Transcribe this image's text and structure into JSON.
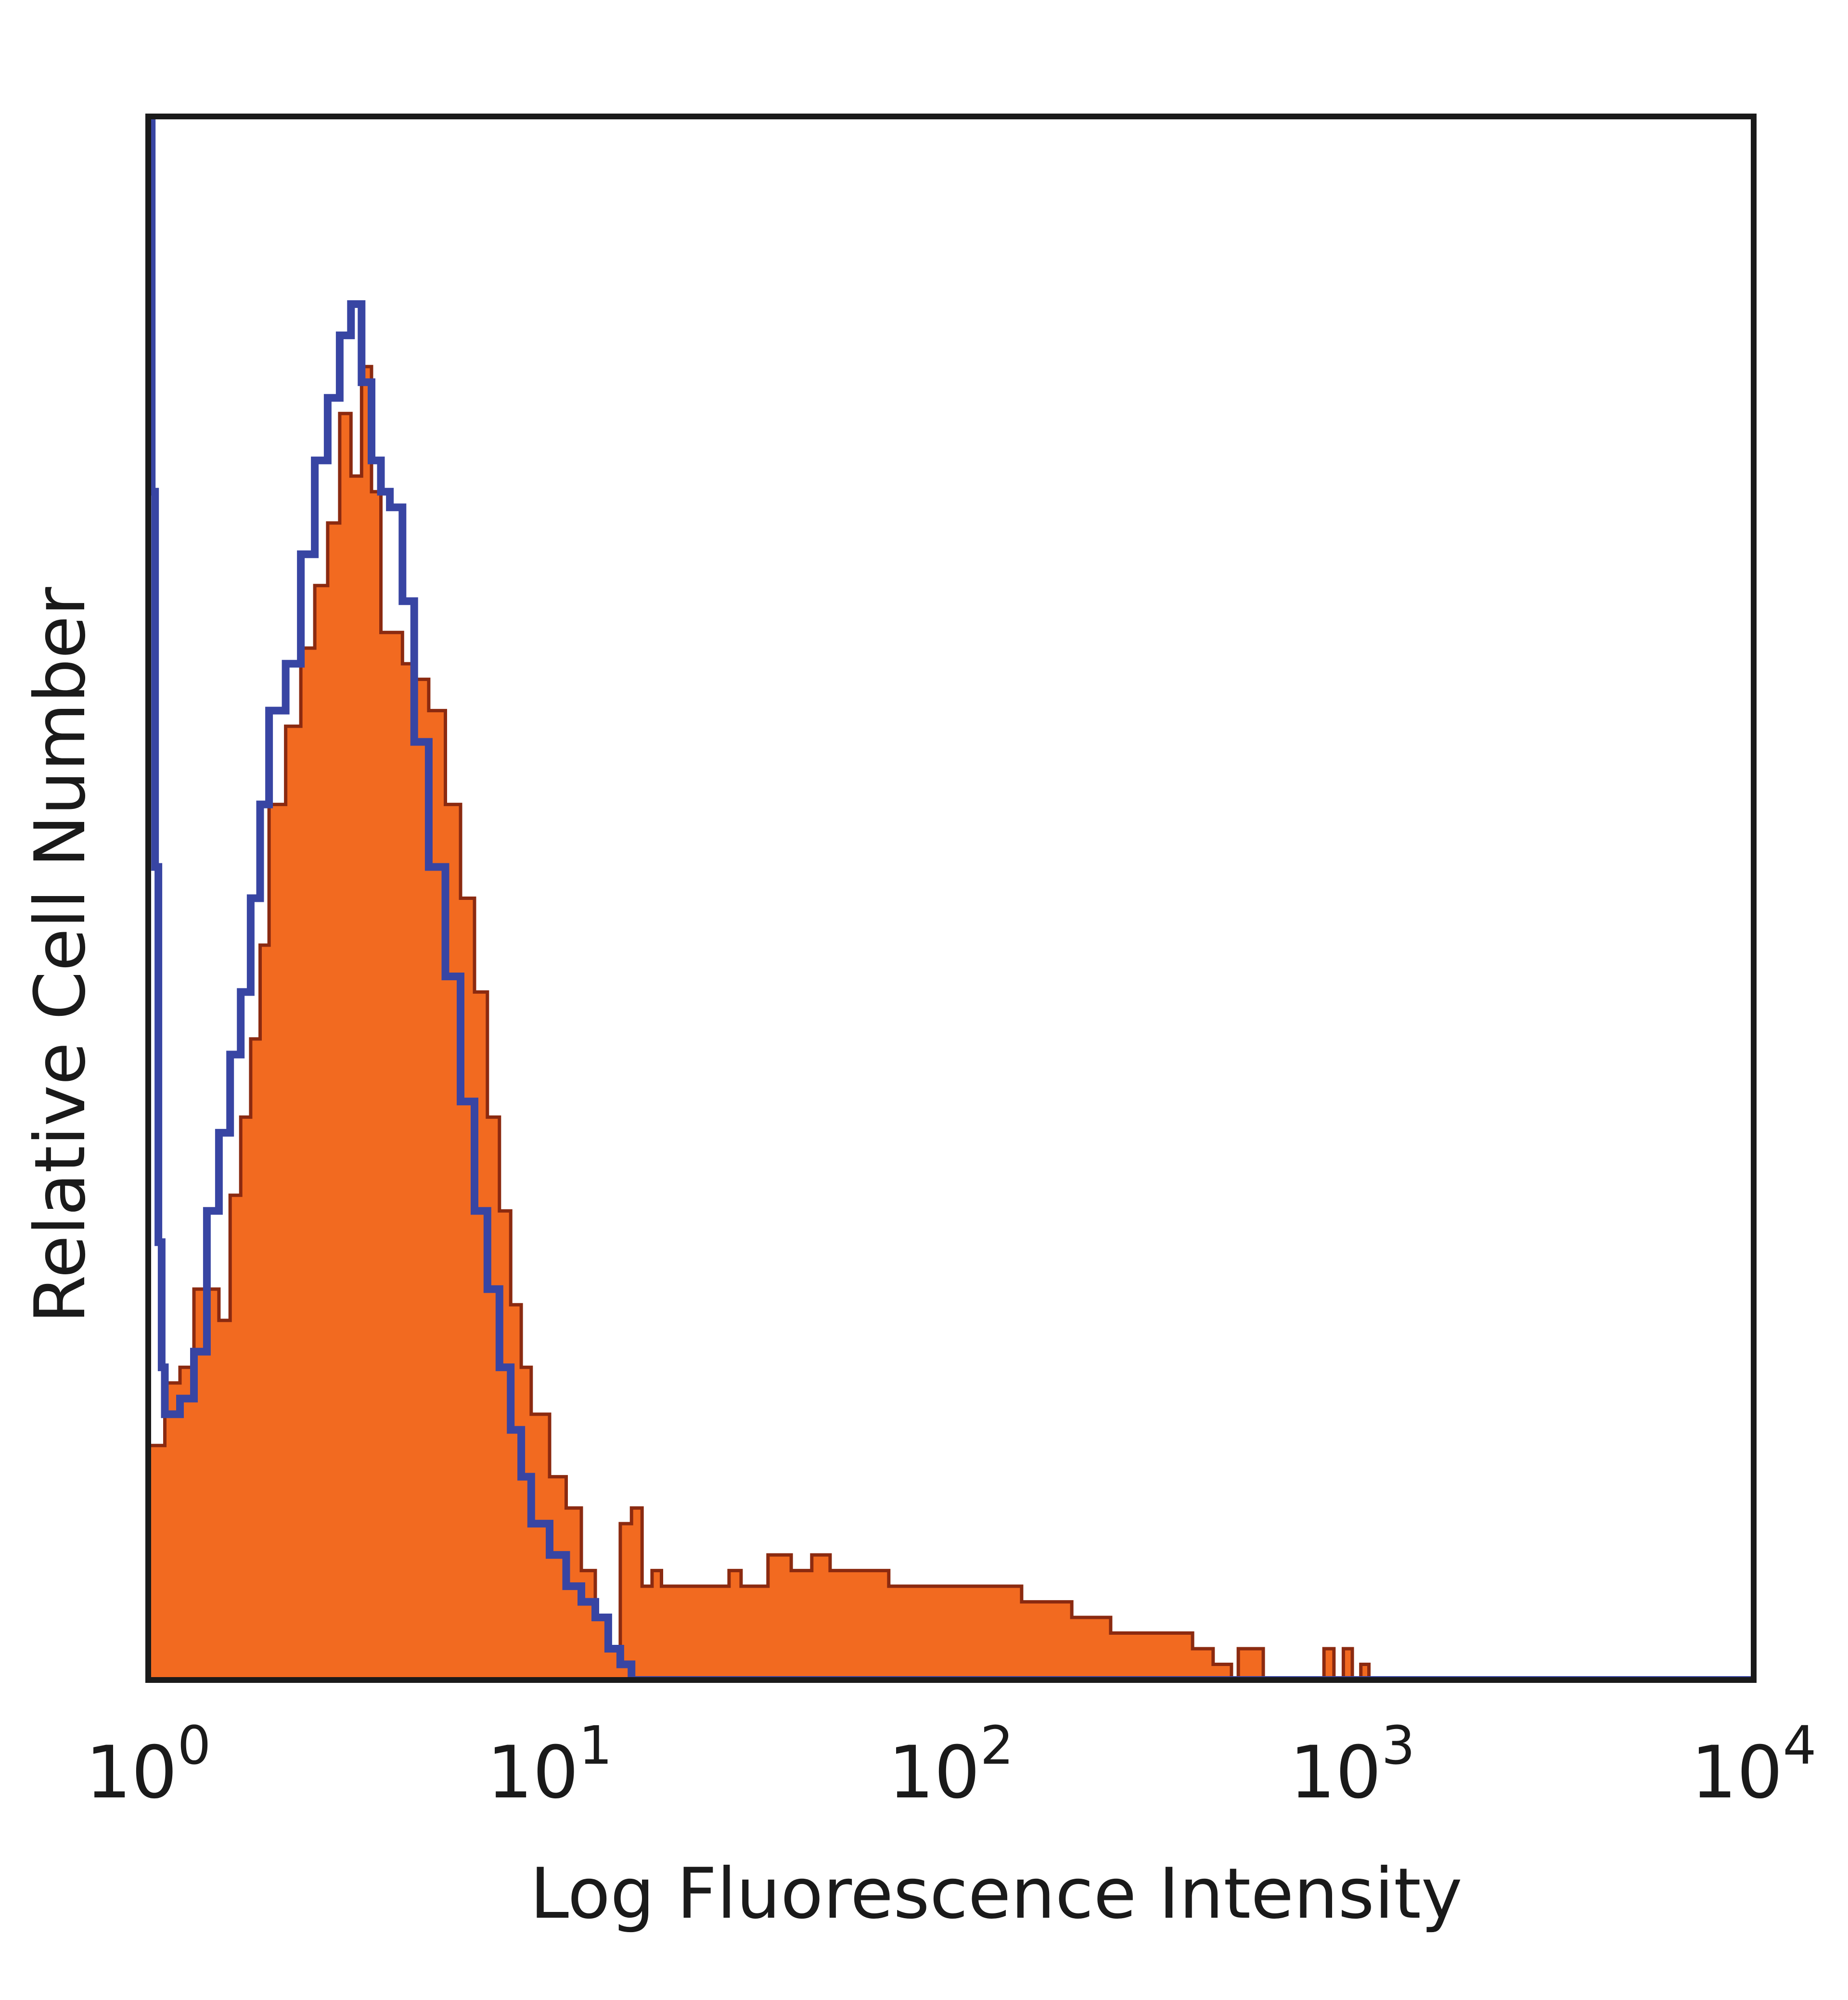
{
  "chart_data": {
    "type": "area",
    "title": "",
    "xlabel": "Log Fluorescence Intensity",
    "ylabel": "Relative Cell Number",
    "xscale": "log",
    "xlim": [
      1,
      10000
    ],
    "ylim": [
      0,
      100
    ],
    "grid": false,
    "legend": "none",
    "x_ticks": [
      {
        "value": 1,
        "base": "10",
        "exp": "0"
      },
      {
        "value": 10,
        "base": "10",
        "exp": "1"
      },
      {
        "value": 100,
        "base": "10",
        "exp": "2"
      },
      {
        "value": 1000,
        "base": "10",
        "exp": "3"
      },
      {
        "value": 10000,
        "base": "10",
        "exp": "4"
      }
    ],
    "series": [
      {
        "style": "filled",
        "color": "#f26a20",
        "outline": "#8b2a10",
        "x": [
          1.0,
          1.1,
          1.2,
          1.3,
          1.4,
          1.5,
          1.6,
          1.7,
          1.8,
          1.9,
          2.0,
          2.2,
          2.4,
          2.6,
          2.8,
          3.0,
          3.2,
          3.4,
          3.6,
          3.8,
          4.0,
          4.3,
          4.6,
          5.0,
          5.5,
          6.0,
          6.5,
          7.0,
          7.5,
          8.0,
          8.5,
          9.0,
          10,
          11,
          12,
          13,
          14,
          15,
          16,
          17,
          18,
          19,
          20,
          22,
          25,
          28,
          30,
          35,
          40,
          45,
          50,
          60,
          70,
          80,
          90,
          100,
          120,
          150,
          200,
          250,
          300,
          350,
          400,
          450,
          500,
          520,
          600,
          700,
          800,
          850,
          900,
          950,
          1000,
          1050,
          1100,
          1500,
          2000,
          5000,
          10000
        ],
        "values": [
          15,
          19,
          20,
          25,
          25,
          23,
          31,
          36,
          41,
          47,
          56,
          61,
          66,
          70,
          74,
          81,
          77,
          84,
          76,
          67,
          67,
          65,
          64,
          62,
          56,
          50,
          44,
          36,
          30,
          24,
          20,
          17,
          13,
          11,
          7,
          4,
          2,
          10,
          11,
          6,
          7,
          6,
          6,
          6,
          6,
          7,
          6,
          8,
          7,
          8,
          7,
          7,
          6,
          6,
          6,
          6,
          6,
          5,
          4,
          3,
          3,
          3,
          2,
          1,
          0,
          2,
          0,
          0,
          0,
          2,
          0,
          2,
          0,
          1,
          0,
          0,
          0,
          0,
          0
        ]
      },
      {
        "style": "line",
        "color": "#3845a3",
        "x": [
          1.0,
          1.02,
          1.04,
          1.06,
          1.08,
          1.1,
          1.2,
          1.3,
          1.4,
          1.5,
          1.6,
          1.7,
          1.8,
          1.9,
          2.0,
          2.2,
          2.4,
          2.6,
          2.8,
          3.0,
          3.2,
          3.4,
          3.6,
          3.8,
          4.0,
          4.3,
          4.6,
          5.0,
          5.5,
          6.0,
          6.5,
          7.0,
          7.5,
          8.0,
          8.5,
          9.0,
          10,
          11,
          12,
          13,
          14,
          15,
          16,
          17,
          18,
          19,
          20,
          25,
          30,
          50,
          100,
          1000,
          10000
        ],
        "values": [
          100,
          76,
          52,
          28,
          20,
          17,
          18,
          21,
          30,
          35,
          40,
          44,
          50,
          56,
          62,
          65,
          72,
          78,
          82,
          86,
          88,
          83,
          78,
          76,
          75,
          69,
          60,
          52,
          45,
          37,
          30,
          25,
          20,
          16,
          13,
          10,
          8,
          6,
          5,
          4,
          2,
          1,
          0,
          0,
          0,
          0,
          0,
          0,
          0,
          0,
          0,
          0,
          0
        ]
      }
    ]
  }
}
